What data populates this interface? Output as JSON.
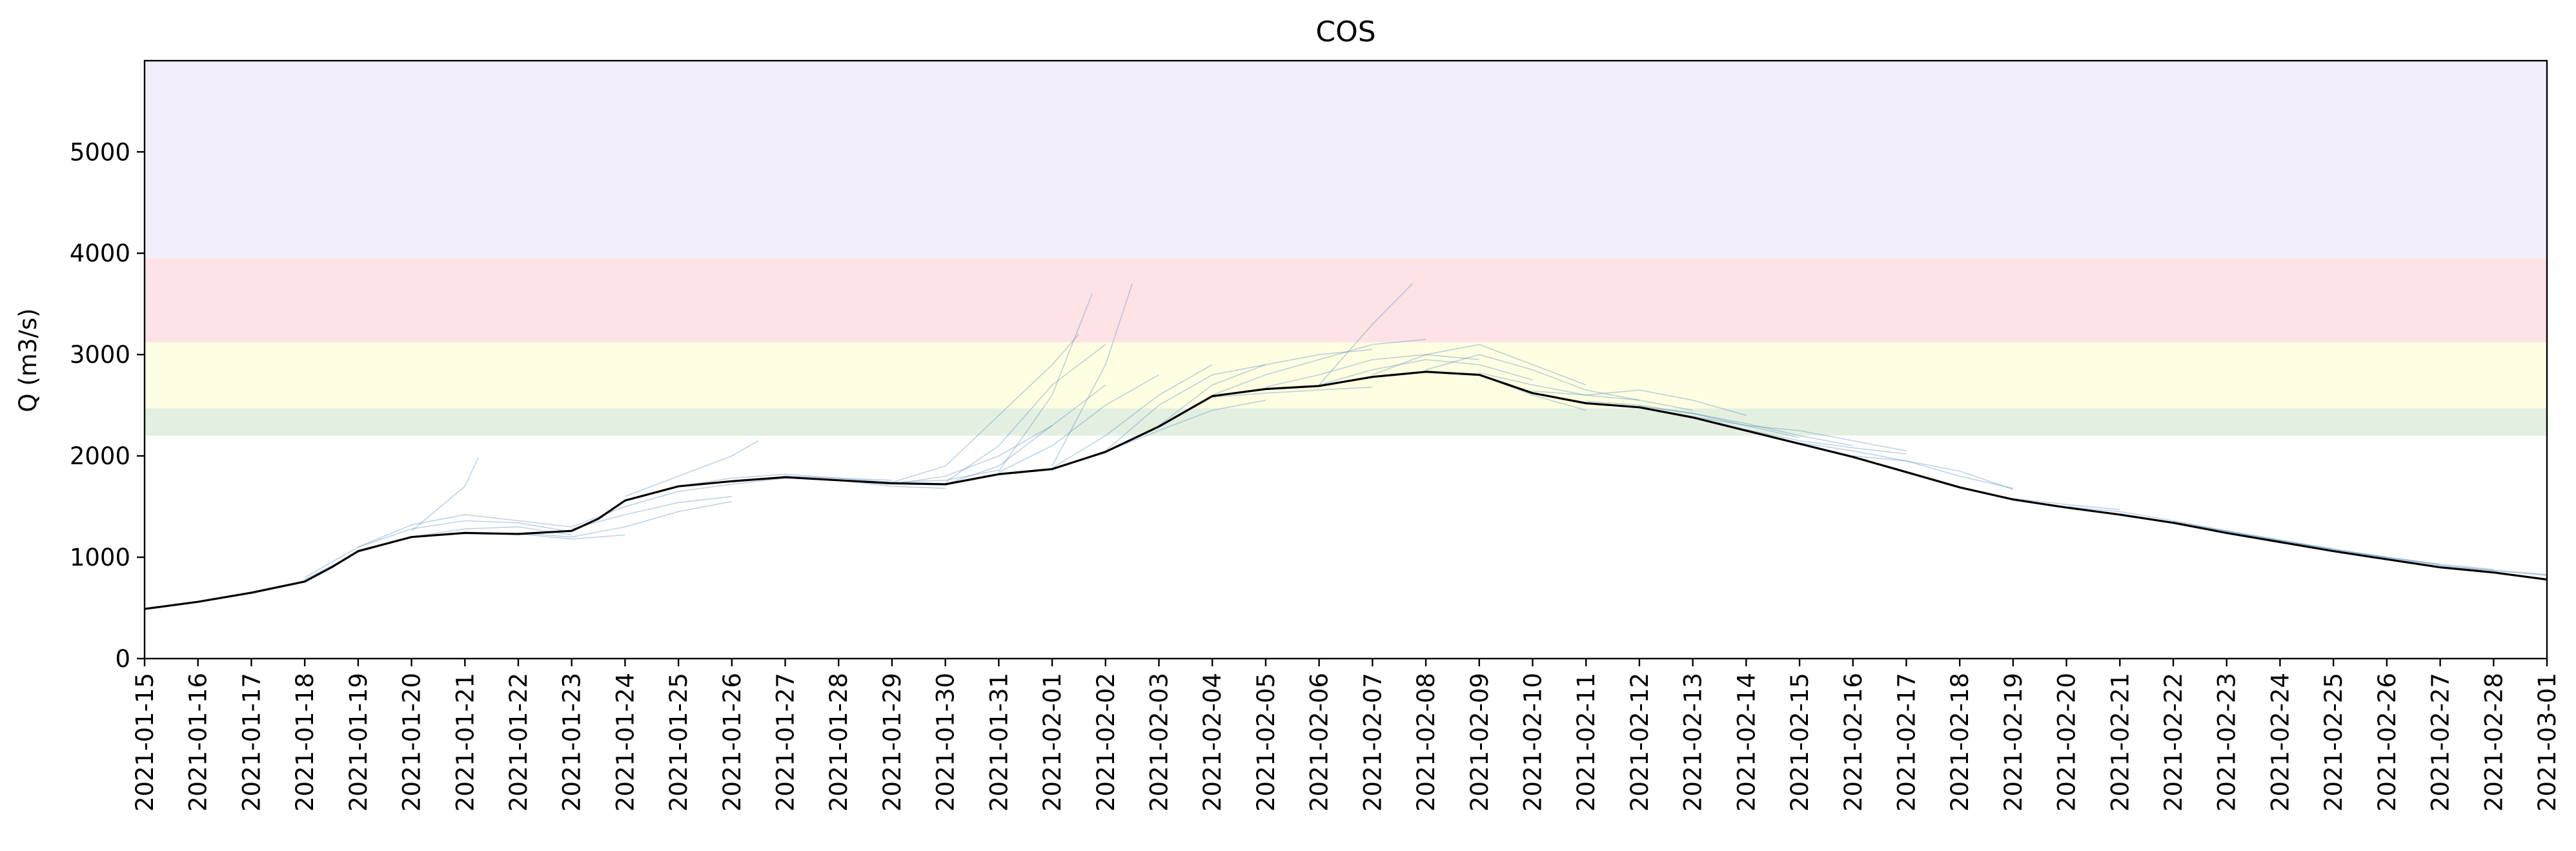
{
  "chart_data": {
    "type": "line",
    "title": "COS",
    "xlabel": "",
    "ylabel": "Q (m3/s)",
    "xlim": [
      "2021-01-15",
      "2021-03-01"
    ],
    "ylim": [
      0,
      5900
    ],
    "y_ticks": [
      0,
      1000,
      2000,
      3000,
      4000,
      5000
    ],
    "x_ticks": [
      "2021-01-15",
      "2021-01-16",
      "2021-01-17",
      "2021-01-18",
      "2021-01-19",
      "2021-01-20",
      "2021-01-21",
      "2021-01-22",
      "2021-01-23",
      "2021-01-24",
      "2021-01-25",
      "2021-01-26",
      "2021-01-27",
      "2021-01-28",
      "2021-01-29",
      "2021-01-30",
      "2021-01-31",
      "2021-02-01",
      "2021-02-02",
      "2021-02-03",
      "2021-02-04",
      "2021-02-05",
      "2021-02-06",
      "2021-02-07",
      "2021-02-08",
      "2021-02-09",
      "2021-02-10",
      "2021-02-11",
      "2021-02-12",
      "2021-02-13",
      "2021-02-14",
      "2021-02-15",
      "2021-02-16",
      "2021-02-17",
      "2021-02-18",
      "2021-02-19",
      "2021-02-20",
      "2021-02-21",
      "2021-02-22",
      "2021-02-23",
      "2021-02-24",
      "2021-02-25",
      "2021-02-26",
      "2021-02-27",
      "2021-02-28",
      "2021-03-01"
    ],
    "grid": false,
    "legend": "none",
    "threshold_bands": [
      {
        "from": 2200,
        "to": 2470,
        "color": "#e3f0e1"
      },
      {
        "from": 2470,
        "to": 3120,
        "color": "#fefee3"
      },
      {
        "from": 3120,
        "to": 3950,
        "color": "#fee3e6"
      },
      {
        "from": 3950,
        "to": 5900,
        "color": "#f2effb"
      }
    ],
    "observed": {
      "color": "#000000",
      "x": [
        "2021-01-15",
        "2021-01-16",
        "2021-01-17",
        "2021-01-18",
        "2021-01-18T12",
        "2021-01-19",
        "2021-01-20",
        "2021-01-21",
        "2021-01-22",
        "2021-01-23",
        "2021-01-23T12",
        "2021-01-24",
        "2021-01-25",
        "2021-01-26",
        "2021-01-27",
        "2021-01-28",
        "2021-01-29",
        "2021-01-30",
        "2021-01-31",
        "2021-02-01",
        "2021-02-02",
        "2021-02-03",
        "2021-02-04",
        "2021-02-05",
        "2021-02-06",
        "2021-02-07",
        "2021-02-08",
        "2021-02-09",
        "2021-02-10",
        "2021-02-11",
        "2021-02-12",
        "2021-02-13",
        "2021-02-14",
        "2021-02-15",
        "2021-02-16",
        "2021-02-17",
        "2021-02-18",
        "2021-02-19",
        "2021-02-20",
        "2021-02-21",
        "2021-02-22",
        "2021-02-23",
        "2021-02-24",
        "2021-02-25",
        "2021-02-26",
        "2021-02-27",
        "2021-02-28",
        "2021-03-01"
      ],
      "y": [
        490,
        560,
        650,
        760,
        900,
        1060,
        1200,
        1240,
        1230,
        1260,
        1380,
        1560,
        1700,
        1750,
        1790,
        1760,
        1730,
        1720,
        1820,
        1870,
        2040,
        2290,
        2590,
        2660,
        2690,
        2780,
        2830,
        2800,
        2620,
        2520,
        2480,
        2380,
        2250,
        2120,
        1990,
        1840,
        1690,
        1570,
        1490,
        1420,
        1340,
        1240,
        1150,
        1060,
        980,
        900,
        850,
        780
      ]
    },
    "ensemble": {
      "color": "#4682b4",
      "description_count": 48,
      "members": [
        {
          "x": [
            "2021-01-18",
            "2021-01-19",
            "2021-01-20",
            "2021-01-21",
            "2021-01-22",
            "2021-01-23"
          ],
          "y": [
            800,
            1100,
            1280,
            1360,
            1340,
            1250
          ]
        },
        {
          "x": [
            "2021-01-18",
            "2021-01-19",
            "2021-01-20",
            "2021-01-21",
            "2021-01-22",
            "2021-01-23"
          ],
          "y": [
            780,
            1050,
            1200,
            1280,
            1300,
            1220
          ]
        },
        {
          "x": [
            "2021-01-19",
            "2021-01-20",
            "2021-01-21",
            "2021-01-22",
            "2021-01-23"
          ],
          "y": [
            1100,
            1320,
            1420,
            1360,
            1300
          ]
        },
        {
          "x": [
            "2021-01-20",
            "2021-01-21",
            "2021-01-21T06"
          ],
          "y": [
            1260,
            1700,
            1980
          ]
        },
        {
          "x": [
            "2021-01-21",
            "2021-01-22",
            "2021-01-23",
            "2021-01-24"
          ],
          "y": [
            1240,
            1230,
            1180,
            1220
          ]
        },
        {
          "x": [
            "2021-01-22",
            "2021-01-23",
            "2021-01-24",
            "2021-01-25",
            "2021-01-26"
          ],
          "y": [
            1240,
            1200,
            1300,
            1450,
            1550
          ]
        },
        {
          "x": [
            "2021-01-23",
            "2021-01-24",
            "2021-01-25",
            "2021-01-26",
            "2021-01-27"
          ],
          "y": [
            1300,
            1500,
            1650,
            1720,
            1780
          ]
        },
        {
          "x": [
            "2021-01-23",
            "2021-01-24",
            "2021-01-25",
            "2021-01-26"
          ],
          "y": [
            1280,
            1420,
            1540,
            1600
          ]
        },
        {
          "x": [
            "2021-01-24",
            "2021-01-25",
            "2021-01-26",
            "2021-01-26T12"
          ],
          "y": [
            1600,
            1800,
            2000,
            2150
          ]
        },
        {
          "x": [
            "2021-01-25",
            "2021-01-26",
            "2021-01-27",
            "2021-01-28",
            "2021-01-29"
          ],
          "y": [
            1700,
            1780,
            1820,
            1780,
            1760
          ]
        },
        {
          "x": [
            "2021-01-26",
            "2021-01-27",
            "2021-01-28",
            "2021-01-29",
            "2021-01-30"
          ],
          "y": [
            1740,
            1800,
            1760,
            1700,
            1680
          ]
        },
        {
          "x": [
            "2021-01-27",
            "2021-01-28",
            "2021-01-29",
            "2021-01-30",
            "2021-01-31"
          ],
          "y": [
            1800,
            1780,
            1740,
            1760,
            1860
          ]
        },
        {
          "x": [
            "2021-01-28",
            "2021-01-29",
            "2021-01-30",
            "2021-01-31",
            "2021-02-01"
          ],
          "y": [
            1760,
            1720,
            1800,
            2000,
            2300
          ]
        },
        {
          "x": [
            "2021-01-29",
            "2021-01-30",
            "2021-01-31",
            "2021-02-01",
            "2021-02-01T12"
          ],
          "y": [
            1740,
            1900,
            2400,
            2900,
            3200
          ]
        },
        {
          "x": [
            "2021-01-30",
            "2021-01-31",
            "2021-02-01",
            "2021-02-02"
          ],
          "y": [
            1740,
            2100,
            2700,
            3100
          ]
        },
        {
          "x": [
            "2021-01-30",
            "2021-01-31",
            "2021-02-01",
            "2021-02-02"
          ],
          "y": [
            1720,
            1900,
            2300,
            2700
          ]
        },
        {
          "x": [
            "2021-01-31",
            "2021-02-01",
            "2021-02-01T18"
          ],
          "y": [
            1850,
            2600,
            3600
          ]
        },
        {
          "x": [
            "2021-01-31",
            "2021-02-01",
            "2021-02-02",
            "2021-02-03"
          ],
          "y": [
            1840,
            2100,
            2500,
            2800
          ]
        },
        {
          "x": [
            "2021-02-01",
            "2021-02-02",
            "2021-02-02T12"
          ],
          "y": [
            1900,
            2900,
            3700
          ]
        },
        {
          "x": [
            "2021-02-01",
            "2021-02-02",
            "2021-02-03",
            "2021-02-04"
          ],
          "y": [
            1880,
            2200,
            2600,
            2900
          ]
        },
        {
          "x": [
            "2021-02-02",
            "2021-02-03",
            "2021-02-04",
            "2021-02-05"
          ],
          "y": [
            2050,
            2500,
            2800,
            2900
          ]
        },
        {
          "x": [
            "2021-02-02",
            "2021-02-03",
            "2021-02-04",
            "2021-02-05"
          ],
          "y": [
            2040,
            2250,
            2450,
            2550
          ]
        },
        {
          "x": [
            "2021-02-03",
            "2021-02-04",
            "2021-02-05",
            "2021-02-06",
            "2021-02-07"
          ],
          "y": [
            2300,
            2700,
            2900,
            3000,
            3050
          ]
        },
        {
          "x": [
            "2021-02-04",
            "2021-02-05",
            "2021-02-06",
            "2021-02-07",
            "2021-02-08"
          ],
          "y": [
            2600,
            2800,
            2950,
            3100,
            3150
          ]
        },
        {
          "x": [
            "2021-02-04",
            "2021-02-05",
            "2021-02-06",
            "2021-02-07"
          ],
          "y": [
            2580,
            2620,
            2650,
            2680
          ]
        },
        {
          "x": [
            "2021-02-05",
            "2021-02-06",
            "2021-02-07",
            "2021-02-08",
            "2021-02-09"
          ],
          "y": [
            2680,
            2800,
            2950,
            3000,
            2950
          ]
        },
        {
          "x": [
            "2021-02-06",
            "2021-02-07",
            "2021-02-07T18"
          ],
          "y": [
            2700,
            3300,
            3700
          ]
        },
        {
          "x": [
            "2021-02-06",
            "2021-02-07",
            "2021-02-08",
            "2021-02-09",
            "2021-02-10"
          ],
          "y": [
            2700,
            2850,
            2950,
            2900,
            2750
          ]
        },
        {
          "x": [
            "2021-02-07",
            "2021-02-08",
            "2021-02-09",
            "2021-02-10",
            "2021-02-11"
          ],
          "y": [
            2800,
            3000,
            3100,
            2900,
            2700
          ]
        },
        {
          "x": [
            "2021-02-08",
            "2021-02-09",
            "2021-02-10",
            "2021-02-11",
            "2021-02-12"
          ],
          "y": [
            2850,
            3000,
            2850,
            2650,
            2550
          ]
        },
        {
          "x": [
            "2021-02-08",
            "2021-02-09",
            "2021-02-10",
            "2021-02-11"
          ],
          "y": [
            2840,
            2800,
            2600,
            2450
          ]
        },
        {
          "x": [
            "2021-02-09",
            "2021-02-10",
            "2021-02-11",
            "2021-02-12",
            "2021-02-13"
          ],
          "y": [
            2820,
            2700,
            2600,
            2550,
            2450
          ]
        },
        {
          "x": [
            "2021-02-10",
            "2021-02-11",
            "2021-02-12",
            "2021-02-13",
            "2021-02-14"
          ],
          "y": [
            2640,
            2600,
            2650,
            2550,
            2400
          ]
        },
        {
          "x": [
            "2021-02-11",
            "2021-02-12",
            "2021-02-13",
            "2021-02-14",
            "2021-02-15"
          ],
          "y": [
            2540,
            2500,
            2420,
            2300,
            2180
          ]
        },
        {
          "x": [
            "2021-02-12",
            "2021-02-13",
            "2021-02-14",
            "2021-02-15",
            "2021-02-16"
          ],
          "y": [
            2490,
            2420,
            2320,
            2200,
            2100
          ]
        },
        {
          "x": [
            "2021-02-13",
            "2021-02-14",
            "2021-02-15",
            "2021-02-16",
            "2021-02-17"
          ],
          "y": [
            2390,
            2300,
            2250,
            2150,
            2050
          ]
        },
        {
          "x": [
            "2021-02-14",
            "2021-02-15",
            "2021-02-16",
            "2021-02-17"
          ],
          "y": [
            2260,
            2150,
            2080,
            2020
          ]
        },
        {
          "x": [
            "2021-02-15",
            "2021-02-16",
            "2021-02-17",
            "2021-02-18",
            "2021-02-19"
          ],
          "y": [
            2130,
            2050,
            1950,
            1800,
            1680
          ]
        },
        {
          "x": [
            "2021-02-16",
            "2021-02-17",
            "2021-02-18",
            "2021-02-19"
          ],
          "y": [
            2000,
            1950,
            1850,
            1670
          ]
        },
        {
          "x": [
            "2021-02-19",
            "2021-02-20",
            "2021-02-21"
          ],
          "y": [
            1580,
            1520,
            1470
          ]
        },
        {
          "x": [
            "2021-02-20",
            "2021-02-21",
            "2021-02-22",
            "2021-02-23"
          ],
          "y": [
            1500,
            1450,
            1360,
            1260
          ]
        },
        {
          "x": [
            "2021-02-21",
            "2021-02-22",
            "2021-02-23",
            "2021-02-24"
          ],
          "y": [
            1430,
            1340,
            1250,
            1160
          ]
        },
        {
          "x": [
            "2021-02-22",
            "2021-02-23",
            "2021-02-24",
            "2021-02-25"
          ],
          "y": [
            1350,
            1260,
            1170,
            1080
          ]
        },
        {
          "x": [
            "2021-02-23",
            "2021-02-24",
            "2021-02-25",
            "2021-02-26"
          ],
          "y": [
            1260,
            1170,
            1080,
            1000
          ]
        },
        {
          "x": [
            "2021-02-24",
            "2021-02-25",
            "2021-02-26",
            "2021-02-27"
          ],
          "y": [
            1160,
            1080,
            1000,
            930
          ]
        },
        {
          "x": [
            "2021-02-25",
            "2021-02-26",
            "2021-02-27",
            "2021-02-28"
          ],
          "y": [
            1070,
            1000,
            930,
            880
          ]
        },
        {
          "x": [
            "2021-02-26",
            "2021-02-27",
            "2021-02-28",
            "2021-03-01"
          ],
          "y": [
            990,
            920,
            870,
            830
          ]
        },
        {
          "x": [
            "2021-02-27",
            "2021-02-28",
            "2021-03-01"
          ],
          "y": [
            910,
            870,
            820
          ]
        }
      ]
    }
  }
}
